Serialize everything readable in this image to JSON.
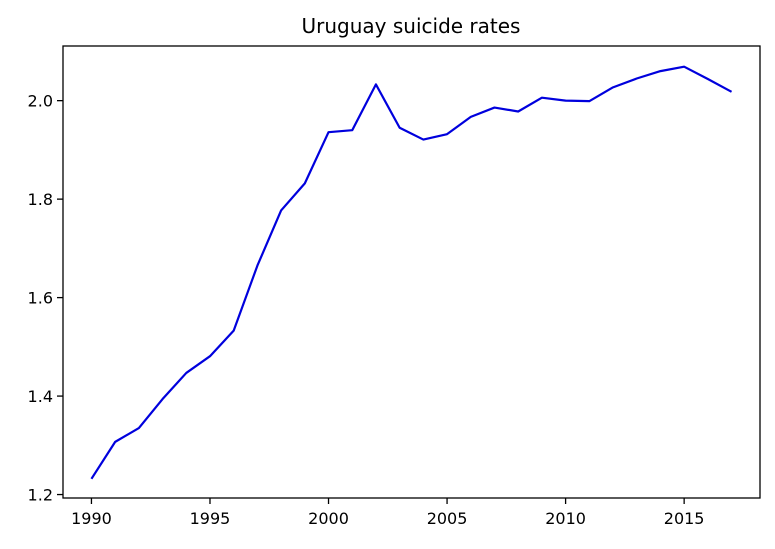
{
  "chart_data": {
    "type": "line",
    "title": "Uruguay suicide rates",
    "xlabel": "",
    "ylabel": "",
    "xlim": [
      1988.8,
      2018.2
    ],
    "ylim": [
      1.193,
      2.111
    ],
    "xticks": [
      1990,
      1995,
      2000,
      2005,
      2010,
      2015
    ],
    "yticks": [
      1.2,
      1.4,
      1.6,
      1.8,
      2.0
    ],
    "ytick_labels": [
      "1.2",
      "1.4",
      "1.6",
      "1.8",
      "2.0"
    ],
    "grid": false,
    "series": [
      {
        "color": "#0000dd",
        "x": [
          1990,
          1991,
          1992,
          1993,
          1994,
          1995,
          1996,
          1997,
          1998,
          1999,
          2000,
          2001,
          2002,
          2003,
          2004,
          2005,
          2006,
          2007,
          2008,
          2009,
          2010,
          2011,
          2012,
          2013,
          2014,
          2015,
          2016,
          2017
        ],
        "y": [
          1.232,
          1.307,
          1.335,
          1.394,
          1.447,
          1.481,
          1.533,
          1.665,
          1.777,
          1.832,
          1.936,
          1.94,
          2.033,
          1.945,
          1.921,
          1.932,
          1.967,
          1.986,
          1.978,
          2.006,
          2.0,
          1.999,
          2.027,
          2.045,
          2.06,
          2.069,
          2.044,
          2.018
        ]
      }
    ]
  }
}
